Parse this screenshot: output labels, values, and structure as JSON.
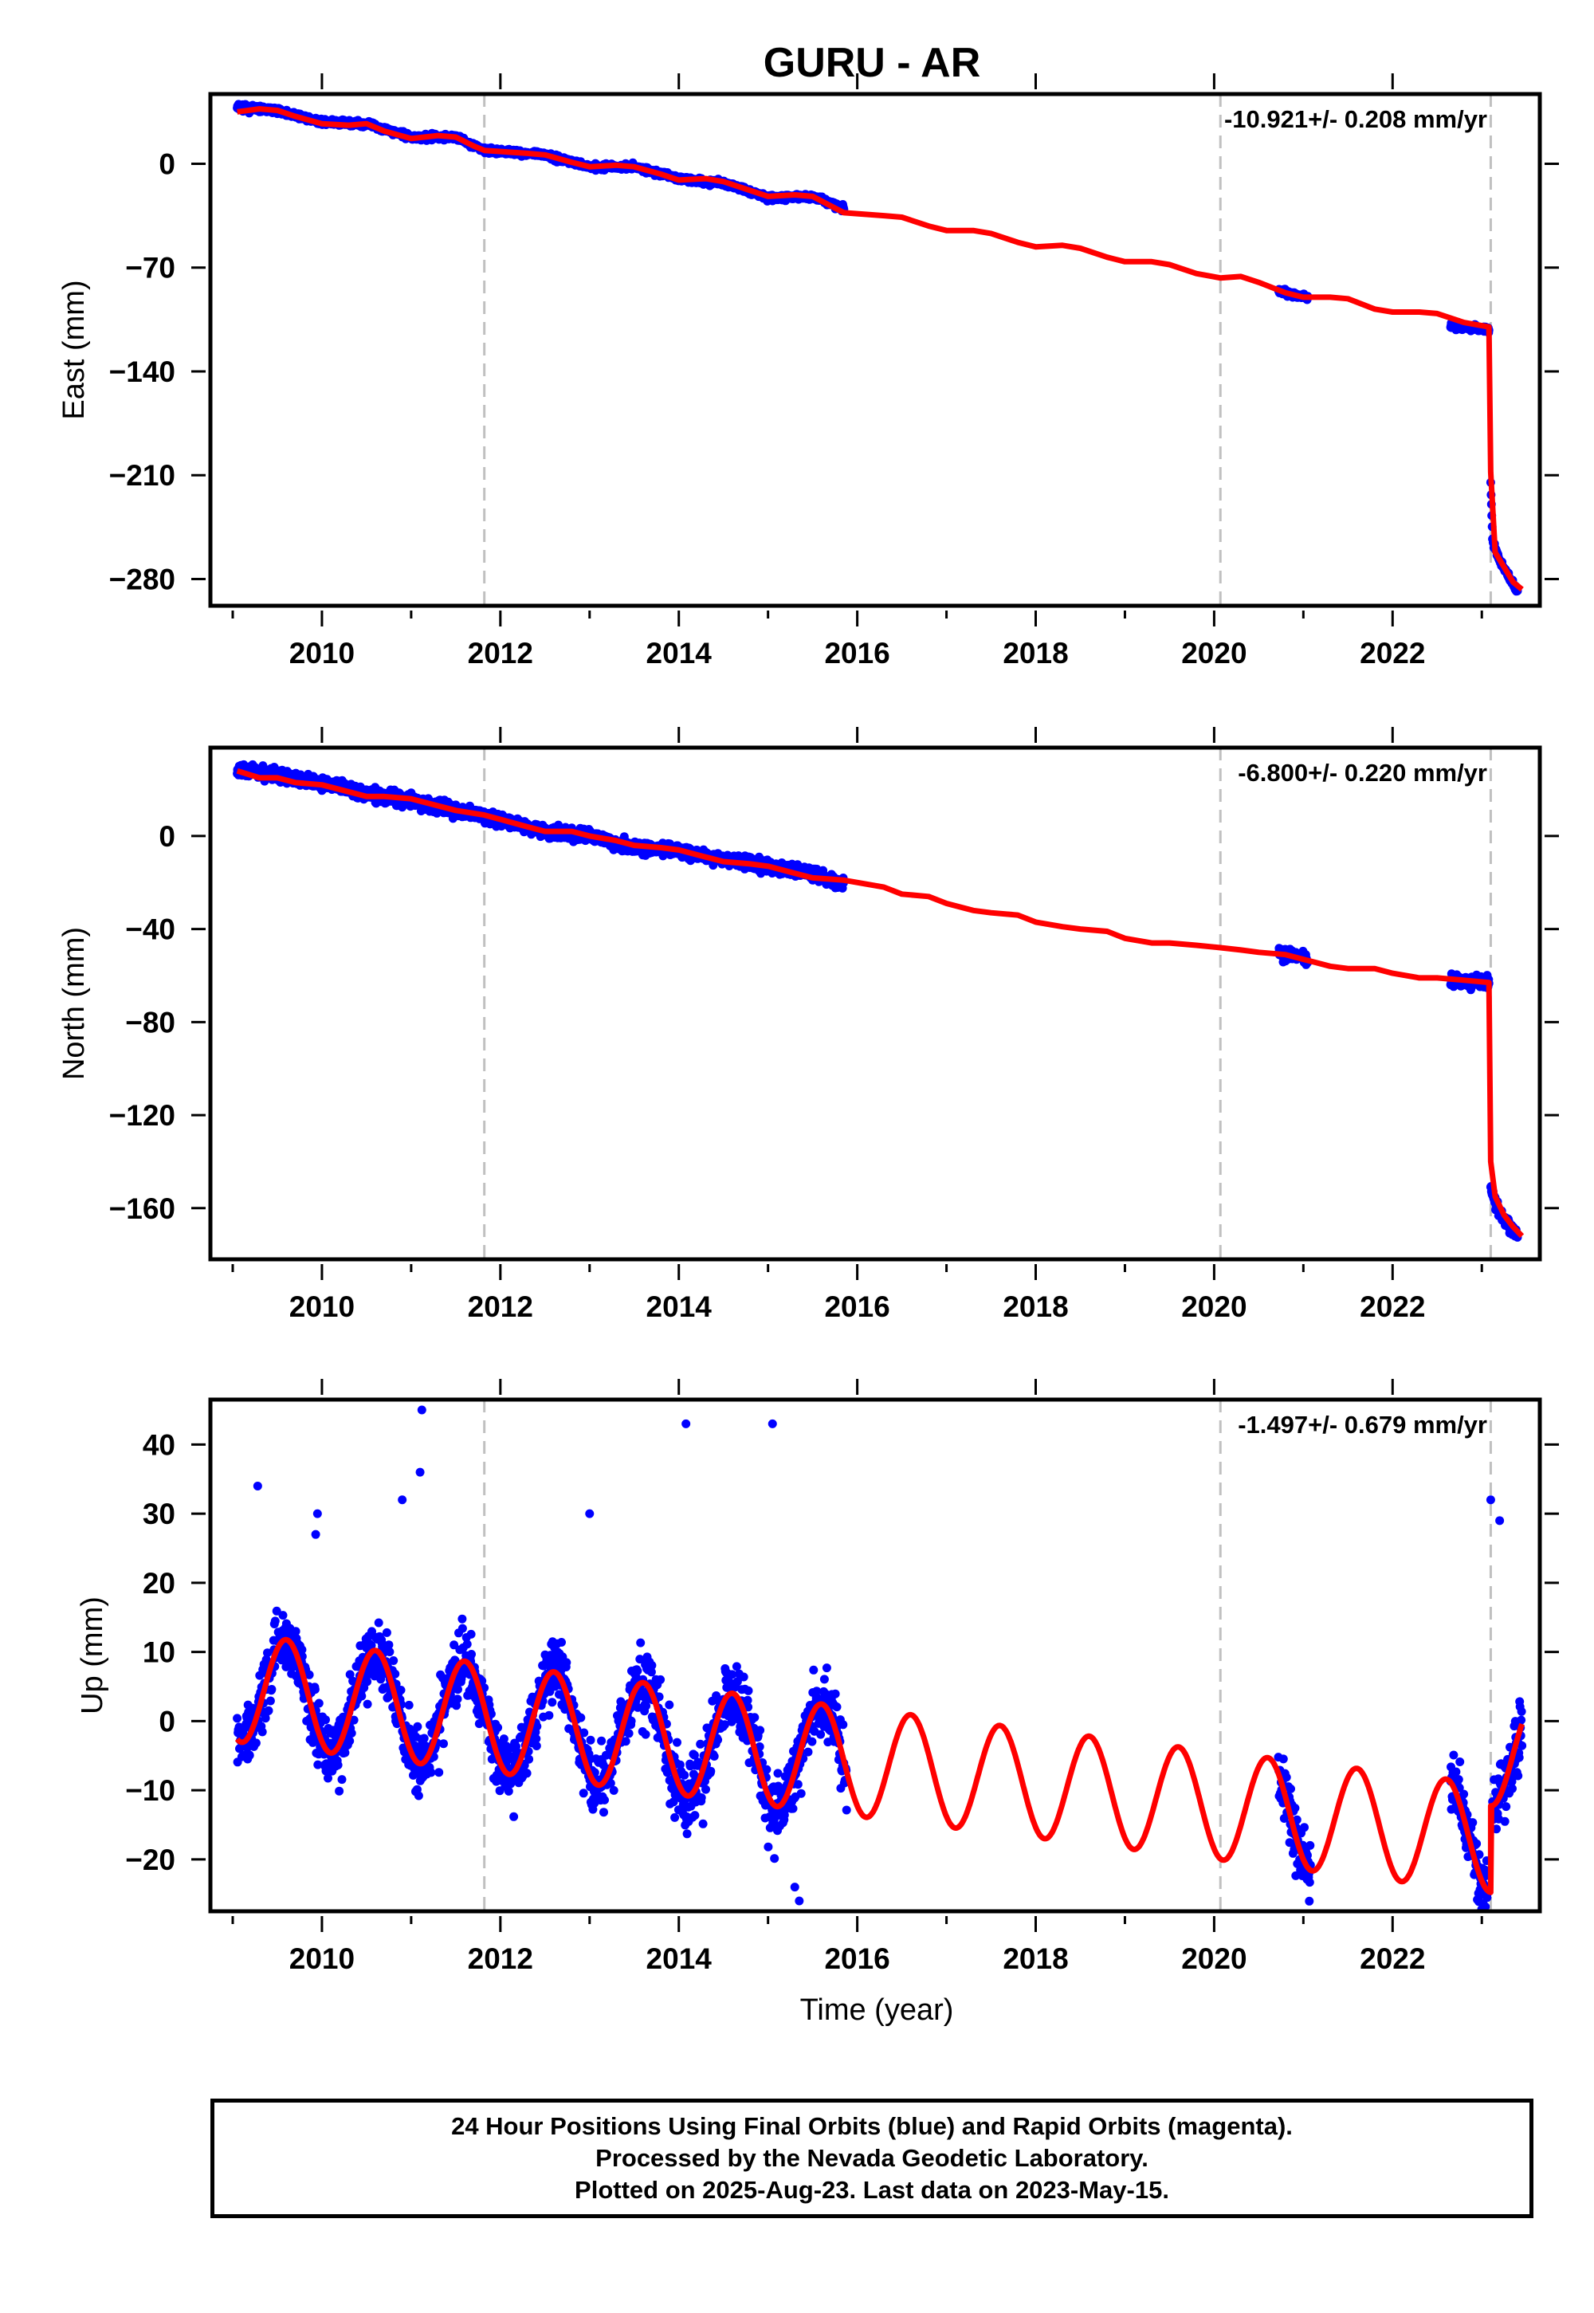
{
  "title": "GURU - AR",
  "chart_data": [
    {
      "type": "scatter",
      "ylabel": "East (mm)",
      "xlim": [
        2008.75,
        2023.65
      ],
      "ylim": [
        -298,
        47
      ],
      "xticks": [
        2010,
        2012,
        2014,
        2016,
        2018,
        2020,
        2022
      ],
      "yticks": [
        0,
        -70,
        -140,
        -210,
        -280
      ],
      "rate_label": "-10.921+/- 0.208 mm/yr",
      "vlines": [
        2011.82,
        2020.07,
        2023.1
      ],
      "series": [
        {
          "color": "#0000ff",
          "segments": [
            [
              [
                2009.05,
                38
              ],
              [
                2009.5,
                36
              ],
              [
                2010.0,
                28
              ],
              [
                2010.5,
                27
              ],
              [
                2011.0,
                18
              ],
              [
                2011.5,
                18
              ],
              [
                2011.82,
                9
              ],
              [
                2012.5,
                6
              ],
              [
                2013.0,
                -2
              ],
              [
                2013.5,
                -2
              ],
              [
                2014.0,
                -10
              ],
              [
                2014.5,
                -13
              ],
              [
                2015.0,
                -23
              ],
              [
                2015.5,
                -22
              ],
              [
                2015.85,
                -30
              ]
            ],
            [
              [
                2020.72,
                -86
              ],
              [
                2021.05,
                -90
              ]
            ],
            [
              [
                2022.65,
                -109
              ],
              [
                2023.08,
                -112
              ]
            ],
            [
              [
                2023.1,
                -215
              ],
              [
                2023.12,
                -254
              ],
              [
                2023.2,
                -268
              ],
              [
                2023.3,
                -278
              ],
              [
                2023.4,
                -288
              ]
            ]
          ]
        },
        {
          "color": "#ff0000",
          "name": "",
          "x": [
            2009.05,
            2009.3,
            2009.5,
            2009.7,
            2010.0,
            2010.3,
            2010.5,
            2010.7,
            2011.0,
            2011.3,
            2011.5,
            2011.7,
            2011.82,
            2012.3,
            2012.5,
            2012.8,
            2013.0,
            2013.3,
            2013.5,
            2013.8,
            2014.0,
            2014.3,
            2014.5,
            2014.8,
            2015.0,
            2015.3,
            2015.5,
            2015.85,
            2016.3,
            2016.5,
            2016.8,
            2017.0,
            2017.3,
            2017.5,
            2017.8,
            2018.0,
            2018.3,
            2018.5,
            2018.8,
            2019.0,
            2019.3,
            2019.5,
            2019.8,
            2020.07,
            2020.3,
            2020.5,
            2020.8,
            2021.0,
            2021.3,
            2021.5,
            2021.8,
            2022.0,
            2022.3,
            2022.5,
            2022.8,
            2023.08,
            2023.1,
            2023.15,
            2023.25,
            2023.35,
            2023.45
          ],
          "y": [
            35,
            37,
            36,
            32,
            27,
            26,
            27,
            22,
            17,
            19,
            18,
            12,
            9,
            7,
            6,
            1,
            -2,
            -1,
            -2,
            -7,
            -11,
            -10,
            -12,
            -18,
            -22,
            -21,
            -22,
            -33,
            -35,
            -36,
            -42,
            -45,
            -45,
            -47,
            -53,
            -56,
            -55,
            -57,
            -63,
            -66,
            -66,
            -68,
            -74,
            -77,
            -76,
            -80,
            -87,
            -90,
            -90,
            -91,
            -98,
            -100,
            -100,
            -101,
            -107,
            -110,
            -208,
            -262,
            -272,
            -282,
            -287
          ]
        }
      ]
    },
    {
      "type": "scatter",
      "ylabel": "North (mm)",
      "xlim": [
        2008.75,
        2023.65
      ],
      "ylim": [
        -182,
        38
      ],
      "xticks": [
        2010,
        2012,
        2014,
        2016,
        2018,
        2020,
        2022
      ],
      "yticks": [
        0,
        -40,
        -80,
        -120,
        -160
      ],
      "rate_label": "-6.800+/- 0.220 mm/yr",
      "vlines": [
        2011.82,
        2020.07,
        2023.1
      ],
      "series": [
        {
          "color": "#0000ff",
          "segments": [
            [
              [
                2009.05,
                29
              ],
              [
                2009.5,
                26
              ],
              [
                2010.0,
                23
              ],
              [
                2010.5,
                18
              ],
              [
                2011.0,
                15
              ],
              [
                2011.5,
                11
              ],
              [
                2011.82,
                9
              ],
              [
                2012.5,
                2
              ],
              [
                2013.0,
                0
              ],
              [
                2013.5,
                -5
              ],
              [
                2014.0,
                -6
              ],
              [
                2014.5,
                -10
              ],
              [
                2015.0,
                -13
              ],
              [
                2015.5,
                -16
              ],
              [
                2015.85,
                -21
              ]
            ],
            [
              [
                2020.72,
                -50
              ],
              [
                2021.05,
                -53
              ]
            ],
            [
              [
                2022.65,
                -62
              ],
              [
                2023.08,
                -63
              ]
            ],
            [
              [
                2023.1,
                -150
              ],
              [
                2023.15,
                -158
              ],
              [
                2023.25,
                -165
              ],
              [
                2023.4,
                -172
              ]
            ]
          ]
        },
        {
          "color": "#ff0000",
          "name": "",
          "x": [
            2009.05,
            2009.3,
            2009.5,
            2009.7,
            2010.0,
            2010.3,
            2010.5,
            2010.7,
            2011.0,
            2011.3,
            2011.5,
            2011.82,
            2012.3,
            2012.5,
            2012.8,
            2013.0,
            2013.3,
            2013.5,
            2013.8,
            2014.0,
            2014.3,
            2014.5,
            2014.8,
            2015.0,
            2015.3,
            2015.5,
            2015.85,
            2016.3,
            2016.5,
            2016.8,
            2017.0,
            2017.3,
            2017.5,
            2017.8,
            2018.0,
            2018.3,
            2018.5,
            2018.8,
            2019.0,
            2019.3,
            2019.5,
            2019.8,
            2020.07,
            2020.3,
            2020.5,
            2020.8,
            2021.0,
            2021.3,
            2021.5,
            2021.8,
            2022.0,
            2022.3,
            2022.5,
            2022.8,
            2023.08,
            2023.1,
            2023.15,
            2023.25,
            2023.35,
            2023.45
          ],
          "y": [
            28,
            25,
            25,
            23,
            22,
            19,
            17,
            17,
            16,
            13,
            11,
            9,
            4,
            2,
            2,
            0,
            -2,
            -4,
            -5,
            -6,
            -9,
            -11,
            -12,
            -13,
            -16,
            -18,
            -19,
            -22,
            -25,
            -26,
            -29,
            -32,
            -33,
            -34,
            -37,
            -39,
            -40,
            -41,
            -44,
            -46,
            -46,
            -47,
            -48,
            -49,
            -50,
            -51,
            -53,
            -56,
            -57,
            -57,
            -59,
            -61,
            -61,
            -62,
            -63,
            -140,
            -155,
            -163,
            -168,
            -172
          ]
        }
      ]
    },
    {
      "type": "scatter",
      "xlabel": "Time (year)",
      "ylabel": "Up (mm)",
      "xlim": [
        2008.75,
        2023.65
      ],
      "ylim": [
        -27.5,
        46.5
      ],
      "xticks": [
        2010,
        2012,
        2014,
        2016,
        2018,
        2020,
        2022
      ],
      "yticks": [
        40,
        30,
        20,
        10,
        0,
        -10,
        -20
      ],
      "rate_label": "-1.497+/- 0.679 mm/yr",
      "vlines": [
        2011.82,
        2020.07,
        2023.1
      ],
      "series": [
        {
          "color": "#0000ff",
          "name": "",
          "ranges": [
            [
              2009.05,
              2015.88
            ],
            [
              2020.72,
              2021.08
            ],
            [
              2022.65,
              2023.08
            ],
            [
              2023.12,
              2023.45
            ]
          ],
          "outliers": [
            [
              2009.28,
              34
            ],
            [
              2009.95,
              30
            ],
            [
              2009.93,
              27
            ],
            [
              2010.9,
              32
            ],
            [
              2011.1,
              36
            ],
            [
              2011.12,
              45
            ],
            [
              2013.0,
              30
            ],
            [
              2014.08,
              43
            ],
            [
              2015.05,
              43
            ],
            [
              2015.3,
              -24
            ],
            [
              2015.35,
              -26
            ],
            [
              2023.1,
              32
            ],
            [
              2023.2,
              29
            ]
          ]
        },
        {
          "color": "#ff0000",
          "name": "",
          "model": "seasonal",
          "amplitude": 7.8,
          "peak_phase": 0.6,
          "trend": -1.55,
          "trend_origin": 2009.0,
          "offset": 4.9,
          "x_range": [
            2009.05,
            2023.45
          ],
          "step_x": 2023.1,
          "step_y": 12.5
        }
      ]
    }
  ],
  "footer": {
    "line1": "24 Hour Positions Using Final Orbits (blue) and Rapid Orbits (magenta).",
    "line2": "Processed by the Nevada Geodetic Laboratory.",
    "line3": "Plotted on 2025-Aug-23. Last data on 2023-May-15."
  }
}
